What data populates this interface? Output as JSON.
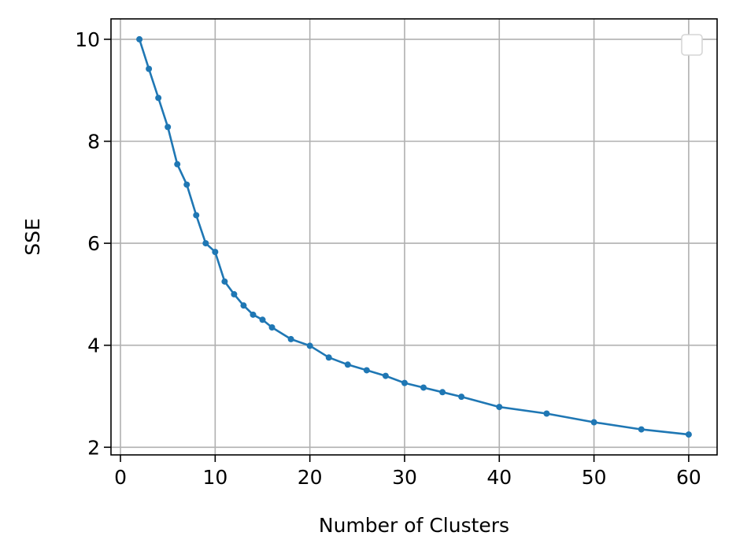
{
  "chart_data": {
    "type": "line",
    "title": "",
    "xlabel": "Number of Clusters",
    "ylabel": "SSE",
    "xlim": [
      -1,
      63
    ],
    "ylim": [
      1.85,
      10.4
    ],
    "xticks": [
      0,
      10,
      20,
      30,
      40,
      50,
      60
    ],
    "yticks": [
      2,
      4,
      6,
      8,
      10
    ],
    "grid": true,
    "legend": "top-right (empty)",
    "series": [
      {
        "color": "#1f77b4",
        "marker": "dot",
        "x": [
          2,
          3,
          4,
          5,
          6,
          7,
          8,
          9,
          10,
          11,
          12,
          13,
          14,
          15,
          16,
          18,
          20,
          22,
          24,
          26,
          28,
          30,
          32,
          34,
          36,
          40,
          45,
          50,
          55,
          60
        ],
        "values": [
          10.0,
          9.42,
          8.85,
          8.28,
          7.55,
          7.15,
          6.55,
          6.0,
          5.83,
          5.25,
          5.0,
          4.78,
          4.6,
          4.5,
          4.35,
          4.12,
          3.99,
          3.76,
          3.62,
          3.51,
          3.4,
          3.26,
          3.17,
          3.08,
          2.99,
          2.79,
          2.66,
          2.49,
          2.35,
          2.25
        ]
      }
    ]
  },
  "colors": {
    "grid": "#b0b0b0",
    "frame": "#000000",
    "series": "#1f77b4"
  }
}
